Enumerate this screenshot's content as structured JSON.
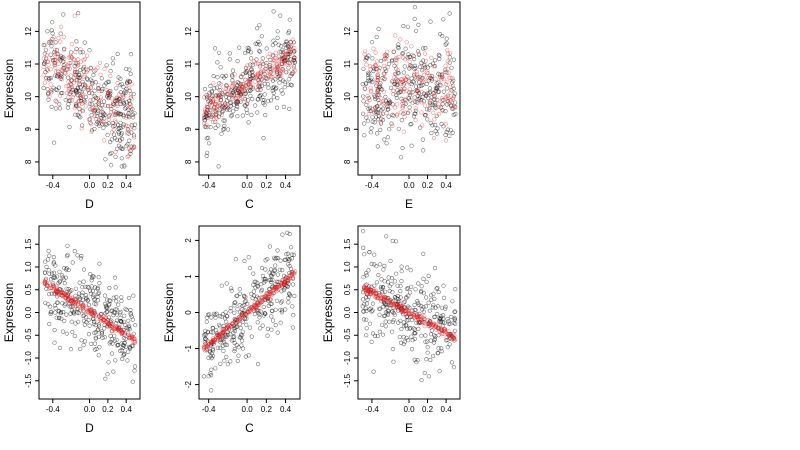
{
  "chart_data": [
    {
      "type": "scatter",
      "xlabel": "D",
      "ylabel": "Expression",
      "xlim": [
        -0.55,
        0.55
      ],
      "ylim": [
        7.6,
        12.9
      ],
      "xticks": [
        -0.4,
        0.0,
        0.2,
        0.4
      ],
      "xtick_labels": [
        "-0.4",
        "0.0",
        "0.2",
        "0.4"
      ],
      "yticks": [
        8,
        9,
        10,
        11,
        12
      ],
      "ytick_labels": [
        "8",
        "9",
        "10",
        "11",
        "12"
      ],
      "series": [
        {
          "color": "#000000",
          "x_range": [
            -0.5,
            0.5
          ],
          "mean_at_min_x": 10.9,
          "mean_at_max_x": 9.3,
          "spread": 0.75,
          "count": 330
        },
        {
          "color": "#e41a1c",
          "x_range": [
            -0.5,
            0.5
          ],
          "mean_at_min_x": 11.1,
          "mean_at_max_x": 9.2,
          "spread": 0.6,
          "count": 200
        }
      ]
    },
    {
      "type": "scatter",
      "xlabel": "C",
      "ylabel": "Expression",
      "xlim": [
        -0.5,
        0.55
      ],
      "ylim": [
        7.6,
        12.9
      ],
      "xticks": [
        -0.4,
        0.0,
        0.2,
        0.4
      ],
      "xtick_labels": [
        "-0.4",
        "0.0",
        "0.2",
        "0.4"
      ],
      "yticks": [
        8,
        9,
        10,
        11,
        12
      ],
      "ytick_labels": [
        "8",
        "9",
        "10",
        "11",
        "12"
      ],
      "series": [
        {
          "color": "#000000",
          "x_range": [
            -0.45,
            0.5
          ],
          "mean_at_min_x": 9.4,
          "mean_at_max_x": 11.3,
          "spread": 0.6,
          "count": 330
        },
        {
          "color": "#e41a1c",
          "x_range": [
            -0.45,
            0.5
          ],
          "mean_at_min_x": 9.5,
          "mean_at_max_x": 11.3,
          "spread": 0.25,
          "count": 200
        }
      ]
    },
    {
      "type": "scatter",
      "xlabel": "E",
      "ylabel": "Expression",
      "xlim": [
        -0.55,
        0.55
      ],
      "ylim": [
        7.6,
        12.9
      ],
      "xticks": [
        -0.4,
        0.0,
        0.2,
        0.4
      ],
      "xtick_labels": [
        "-0.4",
        "0.0",
        "0.2",
        "0.4"
      ],
      "yticks": [
        8,
        9,
        10,
        11,
        12
      ],
      "ytick_labels": [
        "8",
        "9",
        "10",
        "11",
        "12"
      ],
      "series": [
        {
          "color": "#000000",
          "x_range": [
            -0.5,
            0.5
          ],
          "mean_at_min_x": 10.2,
          "mean_at_max_x": 10.1,
          "spread": 0.9,
          "count": 330
        },
        {
          "color": "#e41a1c",
          "x_range": [
            -0.5,
            0.5
          ],
          "mean_at_min_x": 10.4,
          "mean_at_max_x": 10.0,
          "spread": 0.7,
          "count": 200
        }
      ]
    },
    {
      "type": "scatter",
      "xlabel": "D",
      "ylabel": "Expression",
      "xlim": [
        -0.55,
        0.55
      ],
      "ylim": [
        -1.9,
        1.9
      ],
      "xticks": [
        -0.4,
        0.0,
        0.2,
        0.4
      ],
      "xtick_labels": [
        "-0.4",
        "0.0",
        "0.2",
        "0.4"
      ],
      "yticks": [
        -1.5,
        -1.0,
        -0.5,
        0.0,
        0.5,
        1.0,
        1.5
      ],
      "ytick_labels": [
        "-1.5",
        "-1.0",
        "-0.5",
        "0.0",
        "0.5",
        "1.0",
        "1.5"
      ],
      "series": [
        {
          "color": "#000000",
          "x_range": [
            -0.5,
            0.5
          ],
          "mean_at_min_x": 0.6,
          "mean_at_max_x": -0.5,
          "spread": 0.5,
          "count": 330
        },
        {
          "color": "#e41a1c",
          "x_range": [
            -0.5,
            0.5
          ],
          "mean_at_min_x": 0.65,
          "mean_at_max_x": -0.6,
          "spread": 0.04,
          "count": 200
        }
      ]
    },
    {
      "type": "scatter",
      "xlabel": "C",
      "ylabel": "Expression",
      "xlim": [
        -0.5,
        0.55
      ],
      "ylim": [
        -2.4,
        2.4
      ],
      "xticks": [
        -0.4,
        0.0,
        0.2,
        0.4
      ],
      "xtick_labels": [
        "-0.4",
        "0.0",
        "0.2",
        "0.4"
      ],
      "yticks": [
        -2,
        -1,
        0,
        1,
        2
      ],
      "ytick_labels": [
        "-2",
        "-1",
        "0",
        "1",
        "2"
      ],
      "series": [
        {
          "color": "#000000",
          "x_range": [
            -0.45,
            0.5
          ],
          "mean_at_min_x": -0.9,
          "mean_at_max_x": 1.1,
          "spread": 0.55,
          "count": 330
        },
        {
          "color": "#e41a1c",
          "x_range": [
            -0.45,
            0.5
          ],
          "mean_at_min_x": -1.0,
          "mean_at_max_x": 1.1,
          "spread": 0.05,
          "count": 200
        }
      ]
    },
    {
      "type": "scatter",
      "xlabel": "E",
      "ylabel": "Expression",
      "xlim": [
        -0.55,
        0.55
      ],
      "ylim": [
        -1.9,
        1.9
      ],
      "xticks": [
        -0.4,
        0.0,
        0.2,
        0.4
      ],
      "xtick_labels": [
        "-0.4",
        "0.0",
        "0.2",
        "0.4"
      ],
      "yticks": [
        -1.5,
        -1.0,
        -0.5,
        0.0,
        0.5,
        1.0,
        1.5
      ],
      "ytick_labels": [
        "-1.5",
        "-1.0",
        "-0.5",
        "0.0",
        "0.5",
        "1.0",
        "1.5"
      ],
      "series": [
        {
          "color": "#000000",
          "x_range": [
            -0.5,
            0.5
          ],
          "mean_at_min_x": 0.5,
          "mean_at_max_x": -0.5,
          "spread": 0.5,
          "count": 330
        },
        {
          "color": "#e41a1c",
          "x_range": [
            -0.5,
            0.5
          ],
          "mean_at_min_x": 0.55,
          "mean_at_max_x": -0.55,
          "spread": 0.04,
          "count": 200
        }
      ]
    }
  ]
}
